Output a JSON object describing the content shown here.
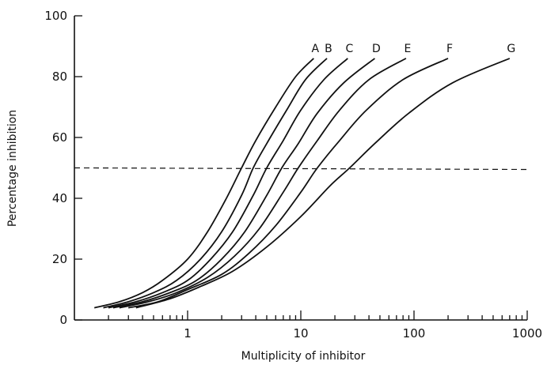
{
  "chart_data": {
    "type": "line",
    "xlabel": "Multiplicity of inhibitor",
    "ylabel": "Percentage inhibition",
    "xscale": "log",
    "xlim": [
      0.1,
      1000
    ],
    "ylim": [
      0,
      100
    ],
    "x_ticks": [
      "1",
      "10",
      "100",
      "1000"
    ],
    "y_ticks": [
      "0",
      "20",
      "40",
      "60",
      "80",
      "100"
    ],
    "grid": false,
    "reference_line": {
      "y": 50,
      "style": "dashed"
    },
    "series": [
      {
        "name": "A",
        "x": [
          0.15,
          0.25,
          0.4,
          0.6,
          1.0,
          1.5,
          2.2,
          3.0,
          4.0,
          6.0,
          9.0,
          13.0
        ],
        "y": [
          4,
          6,
          9,
          13,
          20,
          29,
          40,
          50,
          59,
          70,
          80,
          86
        ]
      },
      {
        "name": "B",
        "x": [
          0.18,
          0.3,
          0.5,
          0.8,
          1.3,
          2.0,
          3.0,
          3.8,
          5.0,
          7.5,
          11.0,
          17.0
        ],
        "y": [
          4,
          6,
          9,
          13,
          20,
          29,
          41,
          50,
          58,
          69,
          79,
          86
        ]
      },
      {
        "name": "C",
        "x": [
          0.2,
          0.35,
          0.6,
          1.0,
          1.6,
          2.5,
          3.8,
          5.0,
          7.0,
          10.0,
          16.0,
          26.0
        ],
        "y": [
          4,
          6,
          9,
          13,
          20,
          29,
          41,
          50,
          59,
          69,
          79,
          86
        ]
      },
      {
        "name": "D",
        "x": [
          0.22,
          0.4,
          0.7,
          1.2,
          2.0,
          3.2,
          5.0,
          6.8,
          9.5,
          14.0,
          24.0,
          45.0
        ],
        "y": [
          4,
          6,
          9,
          13,
          20,
          29,
          41,
          50,
          58,
          68,
          78,
          86
        ]
      },
      {
        "name": "E",
        "x": [
          0.25,
          0.45,
          0.8,
          1.5,
          2.6,
          4.3,
          7.0,
          9.5,
          14.0,
          22.0,
          40.0,
          85.0
        ],
        "y": [
          4,
          6,
          9,
          14,
          21,
          30,
          42,
          50,
          59,
          69,
          79,
          86
        ]
      },
      {
        "name": "F",
        "x": [
          0.3,
          0.55,
          1.0,
          2.0,
          3.5,
          6.0,
          10.0,
          14.0,
          22.0,
          38.0,
          80.0,
          200.0
        ],
        "y": [
          4,
          6,
          10,
          15,
          22,
          31,
          42,
          50,
          59,
          69,
          79,
          86
        ]
      },
      {
        "name": "G",
        "x": [
          0.35,
          0.7,
          1.3,
          2.5,
          5.0,
          10.0,
          18.0,
          27.0,
          45.0,
          90.0,
          220.0,
          700.0
        ],
        "y": [
          4,
          7,
          11,
          16,
          24,
          34,
          44,
          50,
          58,
          68,
          78,
          86
        ]
      }
    ]
  }
}
